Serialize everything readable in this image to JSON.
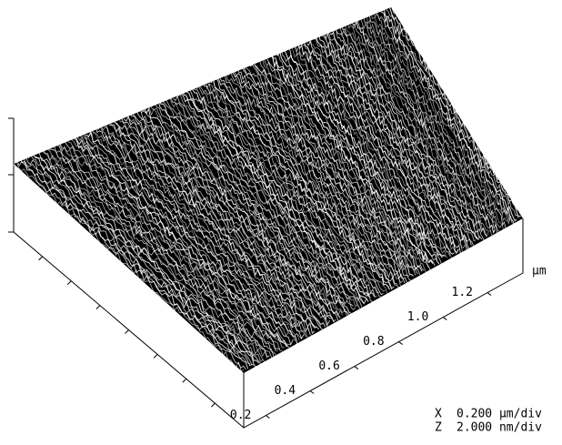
{
  "axis": {
    "ticks": [
      "0.2",
      "0.4",
      "0.6",
      "0.8",
      "1.0",
      "1.2"
    ],
    "unit": "µm"
  },
  "scale": [
    {
      "axis": "X",
      "value": "0.200 µm/div"
    },
    {
      "axis": "Z",
      "value": "2.000 nm/div"
    }
  ]
}
